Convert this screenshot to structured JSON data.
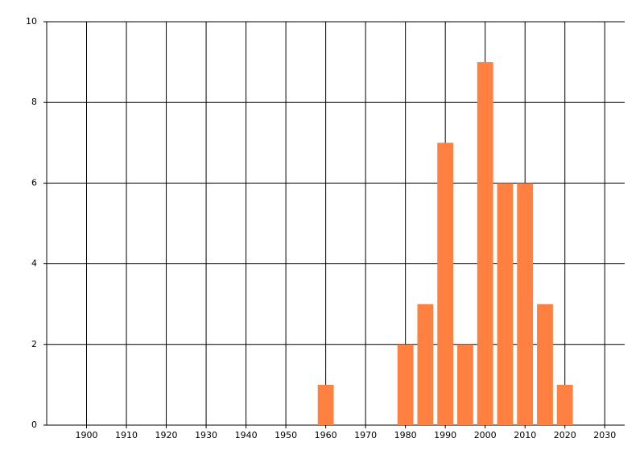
{
  "chart_data": {
    "type": "bar",
    "x": [
      1960,
      1980,
      1985,
      1990,
      1995,
      2000,
      2005,
      2010,
      2015,
      2020
    ],
    "values": [
      1,
      2,
      3,
      7,
      2,
      9,
      6,
      6,
      3,
      1
    ],
    "color": "#ff8040",
    "xlim": [
      1890,
      2035
    ],
    "xticks": [
      1900,
      1910,
      1920,
      1930,
      1940,
      1950,
      1960,
      1970,
      1980,
      1990,
      2000,
      2010,
      2020,
      2030
    ],
    "ylim": [
      0,
      10
    ],
    "yticks": [
      0,
      2,
      4,
      6,
      8,
      10
    ],
    "grid": true
  }
}
